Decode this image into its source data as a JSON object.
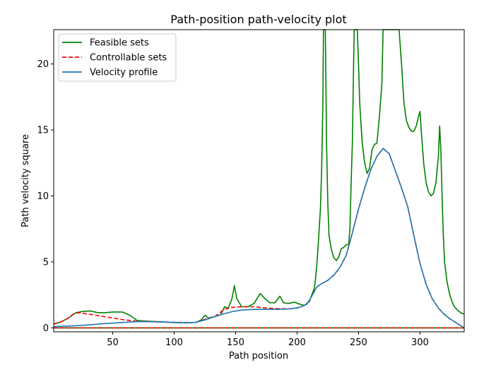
{
  "chart_data": {
    "type": "line",
    "title": "Path-position path-velocity plot",
    "xlabel": "Path position",
    "ylabel": "Path velocity square",
    "xlim": [
      2,
      336
    ],
    "ylim": [
      -0.3,
      22.6
    ],
    "xticks": [
      50,
      100,
      150,
      200,
      250,
      300
    ],
    "yticks": [
      0,
      5,
      10,
      15,
      20
    ],
    "grid": false,
    "legend_position": "top-left",
    "series": [
      {
        "name": "Feasible sets",
        "color": "#008000",
        "dash": "solid",
        "points": [
          [
            2,
            0.3
          ],
          [
            8,
            0.45
          ],
          [
            14,
            0.75
          ],
          [
            20,
            1.15
          ],
          [
            26,
            1.25
          ],
          [
            32,
            1.28
          ],
          [
            38,
            1.15
          ],
          [
            44,
            1.15
          ],
          [
            50,
            1.2
          ],
          [
            58,
            1.2
          ],
          [
            64,
            0.95
          ],
          [
            70,
            0.55
          ],
          [
            80,
            0.5
          ],
          [
            90,
            0.45
          ],
          [
            100,
            0.4
          ],
          [
            110,
            0.38
          ],
          [
            118,
            0.42
          ],
          [
            122,
            0.6
          ],
          [
            125,
            0.95
          ],
          [
            128,
            0.75
          ],
          [
            133,
            0.85
          ],
          [
            138,
            1.0
          ],
          [
            141,
            1.6
          ],
          [
            144,
            1.5
          ],
          [
            147,
            2.2
          ],
          [
            149,
            3.2
          ],
          [
            151,
            2.2
          ],
          [
            155,
            1.6
          ],
          [
            160,
            1.6
          ],
          [
            165,
            1.85
          ],
          [
            170,
            2.6
          ],
          [
            174,
            2.2
          ],
          [
            178,
            1.9
          ],
          [
            182,
            1.9
          ],
          [
            186,
            2.4
          ],
          [
            189,
            1.9
          ],
          [
            193,
            1.85
          ],
          [
            198,
            1.95
          ],
          [
            202,
            1.8
          ],
          [
            206,
            1.7
          ],
          [
            210,
            2.0
          ],
          [
            212,
            2.5
          ],
          [
            214,
            3.0
          ],
          [
            215,
            3.7
          ],
          [
            216,
            4.7
          ],
          [
            217,
            6.0
          ],
          [
            218,
            7.5
          ],
          [
            219,
            9.0
          ],
          [
            220,
            12.0
          ],
          [
            221,
            17.0
          ],
          [
            221.5,
            22.6
          ],
          [
            223,
            22.6
          ],
          [
            224,
            14.0
          ],
          [
            225,
            9.5
          ],
          [
            226,
            7.0
          ],
          [
            228,
            5.9
          ],
          [
            230,
            5.3
          ],
          [
            232,
            5.1
          ],
          [
            234,
            5.4
          ],
          [
            236,
            6.0
          ],
          [
            238,
            6.1
          ],
          [
            240,
            6.3
          ],
          [
            242,
            6.3
          ],
          [
            243,
            7.5
          ],
          [
            244,
            11.0
          ],
          [
            245,
            14.0
          ],
          [
            246,
            20.0
          ],
          [
            246.5,
            22.6
          ],
          [
            249,
            22.6
          ],
          [
            250,
            20.0
          ],
          [
            251,
            17.0
          ],
          [
            253,
            14.0
          ],
          [
            255,
            12.5
          ],
          [
            257,
            11.7
          ],
          [
            259,
            12.1
          ],
          [
            261,
            13.5
          ],
          [
            263,
            13.9
          ],
          [
            265,
            14.0
          ],
          [
            267,
            16.0
          ],
          [
            269,
            18.5
          ],
          [
            270,
            22.6
          ],
          [
            283,
            22.6
          ],
          [
            285,
            20.0
          ],
          [
            287,
            17.0
          ],
          [
            289,
            15.7
          ],
          [
            291,
            15.2
          ],
          [
            293,
            14.9
          ],
          [
            295,
            14.9
          ],
          [
            297,
            15.3
          ],
          [
            299,
            16.1
          ],
          [
            300,
            16.4
          ],
          [
            301,
            15.0
          ],
          [
            303,
            12.5
          ],
          [
            305,
            11.0
          ],
          [
            307,
            10.3
          ],
          [
            309,
            10.0
          ],
          [
            311,
            10.2
          ],
          [
            313,
            11.0
          ],
          [
            315,
            13.0
          ],
          [
            316,
            15.3
          ],
          [
            317,
            13.5
          ],
          [
            318,
            10.0
          ],
          [
            319,
            7.0
          ],
          [
            320,
            5.0
          ],
          [
            322,
            3.5
          ],
          [
            324,
            2.6
          ],
          [
            326,
            2.0
          ],
          [
            328,
            1.6
          ],
          [
            331,
            1.3
          ],
          [
            334,
            1.1
          ],
          [
            336,
            1.05
          ]
        ]
      },
      {
        "name": "Controllable sets",
        "color": "#ff0000",
        "dash": "dashed",
        "points": [
          [
            2,
            0.3
          ],
          [
            8,
            0.45
          ],
          [
            14,
            0.75
          ],
          [
            18,
            1.05
          ],
          [
            22,
            1.15
          ],
          [
            30,
            1.05
          ],
          [
            40,
            0.9
          ],
          [
            50,
            0.75
          ],
          [
            60,
            0.6
          ],
          [
            70,
            0.5
          ],
          [
            80,
            0.48
          ],
          [
            90,
            0.45
          ],
          [
            100,
            0.42
          ],
          [
            110,
            0.4
          ],
          [
            118,
            0.42
          ],
          [
            125,
            0.65
          ],
          [
            133,
            0.85
          ],
          [
            140,
            1.35
          ],
          [
            146,
            1.55
          ],
          [
            155,
            1.6
          ],
          [
            165,
            1.6
          ],
          [
            175,
            1.5
          ],
          [
            185,
            1.45
          ],
          [
            195,
            1.45
          ],
          [
            202,
            1.55
          ],
          [
            208,
            1.8
          ],
          [
            212,
            2.4
          ],
          [
            216,
            3.1
          ],
          [
            220,
            3.35
          ],
          [
            225,
            3.6
          ],
          [
            230,
            4.0
          ],
          [
            235,
            4.6
          ],
          [
            240,
            5.5
          ],
          [
            245,
            7.2
          ],
          [
            250,
            9.0
          ],
          [
            255,
            10.6
          ],
          [
            260,
            12.0
          ],
          [
            265,
            13.0
          ],
          [
            270,
            13.6
          ],
          [
            275,
            13.2
          ],
          [
            280,
            11.9
          ],
          [
            285,
            10.6
          ],
          [
            290,
            9.2
          ],
          [
            295,
            7.0
          ],
          [
            300,
            4.9
          ],
          [
            305,
            3.3
          ],
          [
            310,
            2.2
          ],
          [
            315,
            1.5
          ],
          [
            320,
            1.0
          ],
          [
            325,
            0.65
          ],
          [
            330,
            0.35
          ],
          [
            336,
            0.0
          ]
        ]
      },
      {
        "name": "Velocity profile",
        "color": "#1f77b4",
        "dash": "solid",
        "points": [
          [
            2,
            0.1
          ],
          [
            10,
            0.12
          ],
          [
            20,
            0.16
          ],
          [
            30,
            0.22
          ],
          [
            40,
            0.3
          ],
          [
            50,
            0.36
          ],
          [
            60,
            0.42
          ],
          [
            70,
            0.48
          ],
          [
            80,
            0.47
          ],
          [
            90,
            0.44
          ],
          [
            100,
            0.41
          ],
          [
            110,
            0.38
          ],
          [
            118,
            0.42
          ],
          [
            125,
            0.6
          ],
          [
            133,
            0.85
          ],
          [
            140,
            1.05
          ],
          [
            148,
            1.25
          ],
          [
            155,
            1.35
          ],
          [
            165,
            1.4
          ],
          [
            175,
            1.4
          ],
          [
            185,
            1.4
          ],
          [
            195,
            1.45
          ],
          [
            202,
            1.55
          ],
          [
            208,
            1.8
          ],
          [
            212,
            2.4
          ],
          [
            216,
            3.1
          ],
          [
            220,
            3.35
          ],
          [
            225,
            3.6
          ],
          [
            230,
            4.0
          ],
          [
            235,
            4.6
          ],
          [
            240,
            5.5
          ],
          [
            245,
            7.2
          ],
          [
            250,
            9.0
          ],
          [
            255,
            10.6
          ],
          [
            260,
            12.0
          ],
          [
            265,
            13.0
          ],
          [
            270,
            13.6
          ],
          [
            275,
            13.2
          ],
          [
            280,
            11.9
          ],
          [
            285,
            10.6
          ],
          [
            290,
            9.2
          ],
          [
            295,
            7.0
          ],
          [
            300,
            4.9
          ],
          [
            305,
            3.3
          ],
          [
            310,
            2.2
          ],
          [
            315,
            1.5
          ],
          [
            320,
            1.0
          ],
          [
            325,
            0.65
          ],
          [
            330,
            0.35
          ],
          [
            336,
            0.0
          ]
        ]
      },
      {
        "name": "",
        "color": "#008000",
        "dash": "solid",
        "points": [
          [
            2,
            0.0
          ],
          [
            336,
            0.0
          ]
        ]
      },
      {
        "name": "",
        "color": "#ff0000",
        "dash": "dashed",
        "points": [
          [
            2,
            0.0
          ],
          [
            336,
            0.0
          ]
        ]
      }
    ]
  }
}
